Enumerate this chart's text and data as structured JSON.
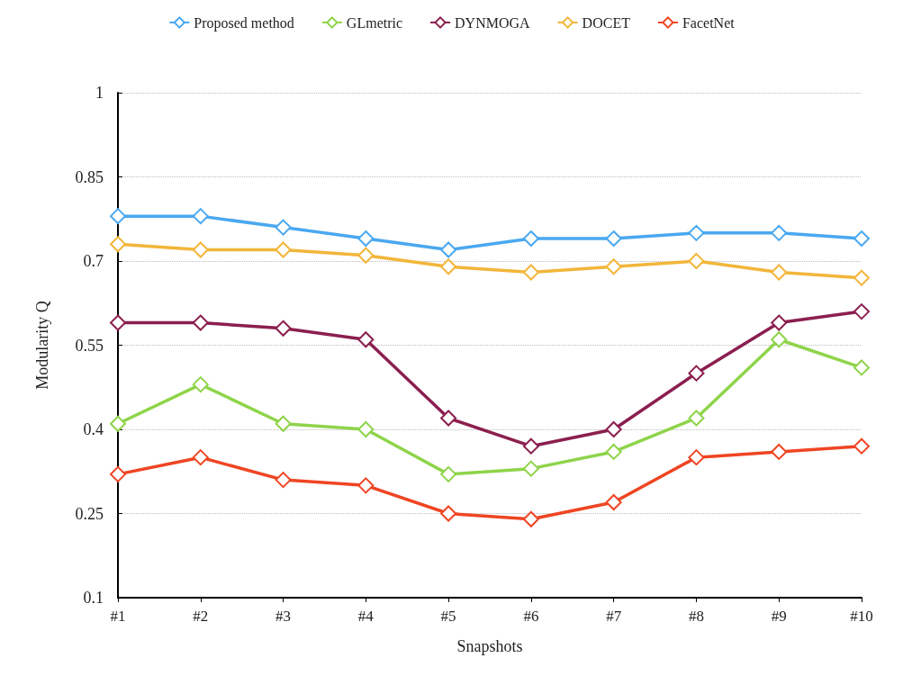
{
  "chart_data": {
    "type": "line",
    "xlabel": "Snapshots",
    "ylabel": "Modularity Q",
    "categories": [
      "#1",
      "#2",
      "#3",
      "#4",
      "#5",
      "#6",
      "#7",
      "#8",
      "#9",
      "#10"
    ],
    "series": [
      {
        "name": "Proposed method",
        "color": "#4aa8f0",
        "values": [
          0.78,
          0.78,
          0.76,
          0.74,
          0.72,
          0.74,
          0.74,
          0.75,
          0.75,
          0.74
        ]
      },
      {
        "name": "GLmetric",
        "color": "#8ed44a",
        "values": [
          0.41,
          0.48,
          0.41,
          0.4,
          0.32,
          0.33,
          0.36,
          0.42,
          0.56,
          0.51
        ]
      },
      {
        "name": "DYNMOGA",
        "color": "#8b1f4f",
        "values": [
          0.59,
          0.59,
          0.58,
          0.56,
          0.42,
          0.37,
          0.4,
          0.5,
          0.59,
          0.61
        ]
      },
      {
        "name": "DOCET",
        "color": "#f2b63a",
        "values": [
          0.73,
          0.72,
          0.72,
          0.71,
          0.69,
          0.68,
          0.69,
          0.7,
          0.68,
          0.67
        ]
      },
      {
        "name": "FacetNet",
        "color": "#ef4523",
        "values": [
          0.32,
          0.35,
          0.31,
          0.3,
          0.25,
          0.24,
          0.27,
          0.35,
          0.36,
          0.37
        ]
      }
    ],
    "ylim": [
      0.1,
      1
    ],
    "yticks": [
      0.1,
      0.25,
      0.4,
      0.55,
      0.7,
      0.85,
      1
    ],
    "grid": "y",
    "legend": "top",
    "marker": "diamond",
    "line_style": "solid"
  }
}
